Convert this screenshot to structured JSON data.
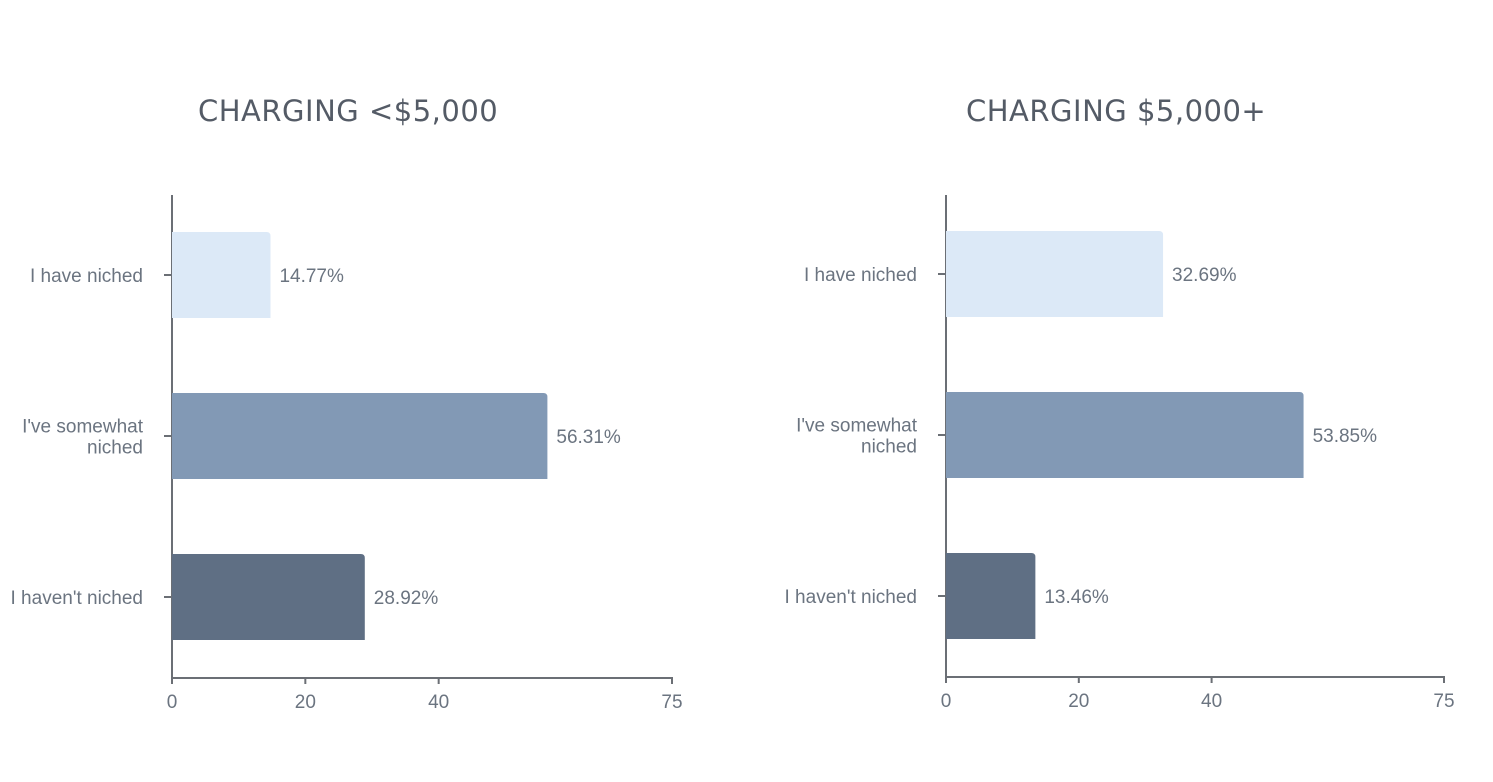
{
  "chart_data": [
    {
      "type": "bar",
      "orientation": "horizontal",
      "title": "CHARGING <$5,000",
      "categories": [
        "I have niched",
        "I've somewhat niched",
        "I haven't niched"
      ],
      "category_lines": [
        [
          "I have niched"
        ],
        [
          "I've somewhat",
          "niched"
        ],
        [
          "I haven't niched"
        ]
      ],
      "values": [
        14.77,
        56.31,
        28.92
      ],
      "value_labels": [
        "14.77%",
        "56.31%",
        "28.92%"
      ],
      "bar_colors": [
        "#dce9f7",
        "#8299b5",
        "#5f6f84"
      ],
      "xlim": [
        0,
        75
      ],
      "xticks": [
        0,
        20,
        40,
        75
      ],
      "xtick_labels": [
        "0",
        "20",
        "40",
        "75"
      ],
      "grid": false,
      "legend": "none"
    },
    {
      "type": "bar",
      "orientation": "horizontal",
      "title": "CHARGING $5,000+",
      "categories": [
        "I have niched",
        "I've somewhat niched",
        "I haven't niched"
      ],
      "category_lines": [
        [
          "I have niched"
        ],
        [
          "I've somewhat",
          "niched"
        ],
        [
          "I haven't niched"
        ]
      ],
      "values": [
        32.69,
        53.85,
        13.46
      ],
      "value_labels": [
        "32.69%",
        "53.85%",
        "13.46%"
      ],
      "bar_colors": [
        "#dce9f7",
        "#8299b5",
        "#5f6f84"
      ],
      "xlim": [
        0,
        75
      ],
      "xticks": [
        0,
        20,
        40,
        75
      ],
      "xtick_labels": [
        "0",
        "20",
        "40",
        "75"
      ],
      "grid": false,
      "legend": "none"
    }
  ],
  "colors": {
    "axis": "#6b6f75",
    "text": "#6b7480",
    "title": "#545b66"
  }
}
